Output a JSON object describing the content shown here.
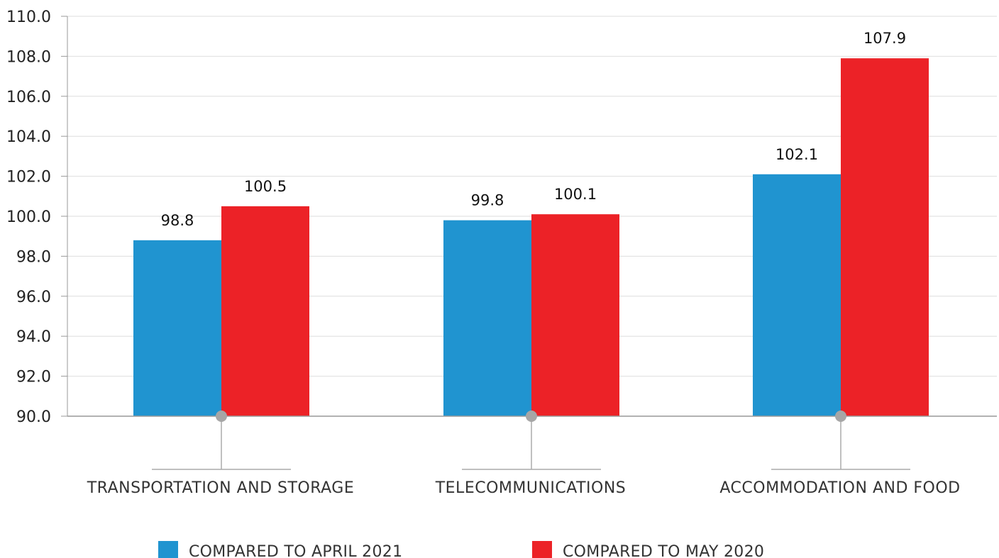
{
  "chart_data": {
    "type": "bar",
    "categories": [
      "TRANSPORTATION AND STORAGE",
      "TELECOMMUNICATIONS",
      "ACCOMMODATION AND FOOD"
    ],
    "series": [
      {
        "name": "COMPARED TO APRIL 2021",
        "color": "#2094d0",
        "values": [
          98.8,
          99.8,
          102.1
        ],
        "labels": [
          "98.8",
          "99.8",
          "102.1"
        ]
      },
      {
        "name": "COMPARED TO MAY 2020",
        "color": "#ec2227",
        "values": [
          100.5,
          100.1,
          107.9
        ],
        "labels": [
          "100.5",
          "100.1",
          "107.9"
        ]
      }
    ],
    "ylim": [
      90,
      110
    ],
    "yticks": [
      "90.0",
      "92.0",
      "94.0",
      "96.0",
      "98.0",
      "100.0",
      "102.0",
      "104.0",
      "106.0",
      "108.0",
      "110.0"
    ],
    "grid": true,
    "legend_position": "bottom"
  }
}
